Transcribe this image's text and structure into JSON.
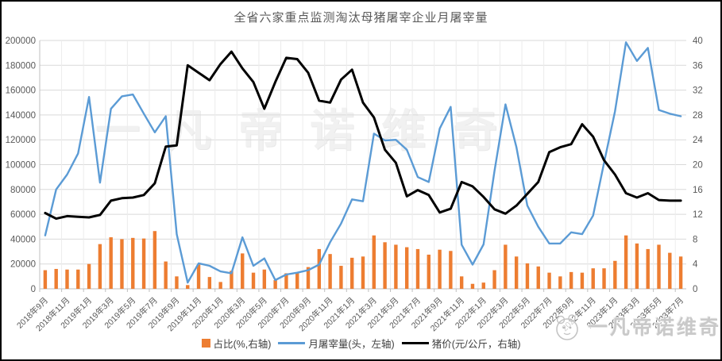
{
  "title": "全省六家重点监测淘汰母猪屠宰企业月屠宰量",
  "watermark_center": "一凡帝诺维奇",
  "watermark_corner": "一凡帝诺维奇",
  "colors": {
    "bar": "#ED7D31",
    "volume_line": "#5B9BD5",
    "price_line": "#000000",
    "grid": "#D9D9D9",
    "axis": "#BFBFBF",
    "label": "#595959"
  },
  "chart_data": {
    "type": "combo-bar-line",
    "title": "全省六家重点监测淘汰母猪屠宰企业月屠宰量",
    "grid": true,
    "legend_position": "bottom",
    "categories": [
      "2018年9月",
      "2018年10月",
      "2018年11月",
      "2018年12月",
      "2019年1月",
      "2019年2月",
      "2019年3月",
      "2019年4月",
      "2019年5月",
      "2019年6月",
      "2019年7月",
      "2019年8月",
      "2019年9月",
      "2019年10月",
      "2019年11月",
      "2019年12月",
      "2020年1月",
      "2020年2月",
      "2020年3月",
      "2020年4月",
      "2020年5月",
      "2020年6月",
      "2020年7月",
      "2020年8月",
      "2020年9月",
      "2020年10月",
      "2020年11月",
      "2020年12月",
      "2021年1月",
      "2021年2月",
      "2021年3月",
      "2021年4月",
      "2021年5月",
      "2021年6月",
      "2021年7月",
      "2021年8月",
      "2021年9月",
      "2021年10月",
      "2021年11月",
      "2021年12月",
      "2022年1月",
      "2022年2月",
      "2022年3月",
      "2022年4月",
      "2022年5月",
      "2022年6月",
      "2022年7月",
      "2022年8月",
      "2022年9月",
      "2022年10月",
      "2022年11月",
      "2022年12月",
      "2023年1月",
      "2023年2月",
      "2023年3月",
      "2023年4月",
      "2023年5月",
      "2023年6月",
      "2023年7月"
    ],
    "x_tick_labels": [
      "2018年9月",
      "2018年11月",
      "2019年1月",
      "2019年3月",
      "2019年5月",
      "2019年7月",
      "2019年9月",
      "2019年11月",
      "2020年1月",
      "2020年3月",
      "2020年5月",
      "2020年7月",
      "2020年9月",
      "2020年11月",
      "2021年1月",
      "2021年3月",
      "2021年5月",
      "2021年7月",
      "2021年9月",
      "2021年11月",
      "2022年1月",
      "2022年3月",
      "2022年5月",
      "2022年7月",
      "2022年9月",
      "2022年11月",
      "2023年1月",
      "2023年3月",
      "2023年5月",
      "2023年7月"
    ],
    "left_axis": {
      "min": 0,
      "max": 200000,
      "step": 20000,
      "ticks": [
        0,
        20000,
        40000,
        60000,
        80000,
        100000,
        120000,
        140000,
        160000,
        180000,
        200000
      ]
    },
    "right_axis": {
      "min": 0,
      "max": 40,
      "step": 4,
      "ticks": [
        0,
        4,
        8,
        12,
        16,
        20,
        24,
        28,
        32,
        36,
        40
      ]
    },
    "series": [
      {
        "name": "占比(%,右轴)",
        "type": "bar",
        "axis": "right",
        "color": "#ED7D31",
        "values": [
          3.0,
          3.2,
          3.1,
          3.1,
          4.0,
          7.2,
          8.3,
          8.0,
          8.2,
          8.1,
          9.3,
          4.4,
          2.0,
          0.6,
          3.9,
          1.9,
          1.1,
          2.9,
          5.7,
          2.6,
          3.1,
          1.4,
          2.5,
          2.6,
          3.5,
          6.4,
          5.6,
          3.7,
          5.0,
          5.2,
          8.6,
          7.5,
          7.1,
          6.7,
          6.4,
          5.5,
          6.3,
          6.1,
          2.0,
          0.8,
          1.0,
          3.0,
          7.1,
          5.2,
          4.1,
          3.6,
          2.6,
          2.0,
          2.7,
          2.6,
          3.3,
          3.3,
          4.5,
          8.6,
          7.3,
          6.4,
          7.1,
          5.8,
          5.2
        ]
      },
      {
        "name": "月屠宰量(头，左轴)",
        "type": "line",
        "axis": "left",
        "color": "#5B9BD5",
        "values": [
          43000,
          80000,
          92000,
          109000,
          154500,
          85500,
          145000,
          155000,
          156500,
          141000,
          126000,
          139000,
          44000,
          5000,
          20500,
          18500,
          14000,
          12500,
          41500,
          18500,
          24500,
          7000,
          11500,
          13000,
          15000,
          19500,
          37500,
          52500,
          72000,
          70500,
          125000,
          119500,
          120000,
          112000,
          90000,
          86000,
          129000,
          146500,
          35500,
          19500,
          35800,
          95000,
          148500,
          114000,
          67000,
          50000,
          36500,
          36500,
          45500,
          44000,
          59000,
          101500,
          143000,
          198500,
          183500,
          194000,
          144000,
          141000,
          139000
        ]
      },
      {
        "name": "猪价(元/公斤，右轴)",
        "type": "line",
        "axis": "right",
        "color": "#000000",
        "values": [
          12.2,
          11.3,
          11.7,
          11.6,
          11.5,
          11.9,
          14.2,
          14.6,
          14.7,
          15.1,
          17.0,
          22.9,
          23.1,
          36.0,
          34.8,
          33.6,
          36.2,
          38.2,
          35.5,
          33.3,
          29.0,
          33.3,
          37.2,
          37.0,
          34.8,
          30.3,
          30.0,
          33.7,
          35.3,
          30.0,
          27.6,
          22.4,
          20.3,
          14.9,
          15.9,
          15.1,
          12.3,
          12.9,
          17.2,
          16.5,
          14.8,
          12.8,
          12.1,
          13.4,
          15.3,
          17.2,
          22.0,
          22.8,
          23.3,
          26.5,
          24.5,
          20.7,
          18.4,
          15.4,
          14.7,
          15.4,
          14.3,
          14.2,
          14.2
        ]
      }
    ]
  }
}
